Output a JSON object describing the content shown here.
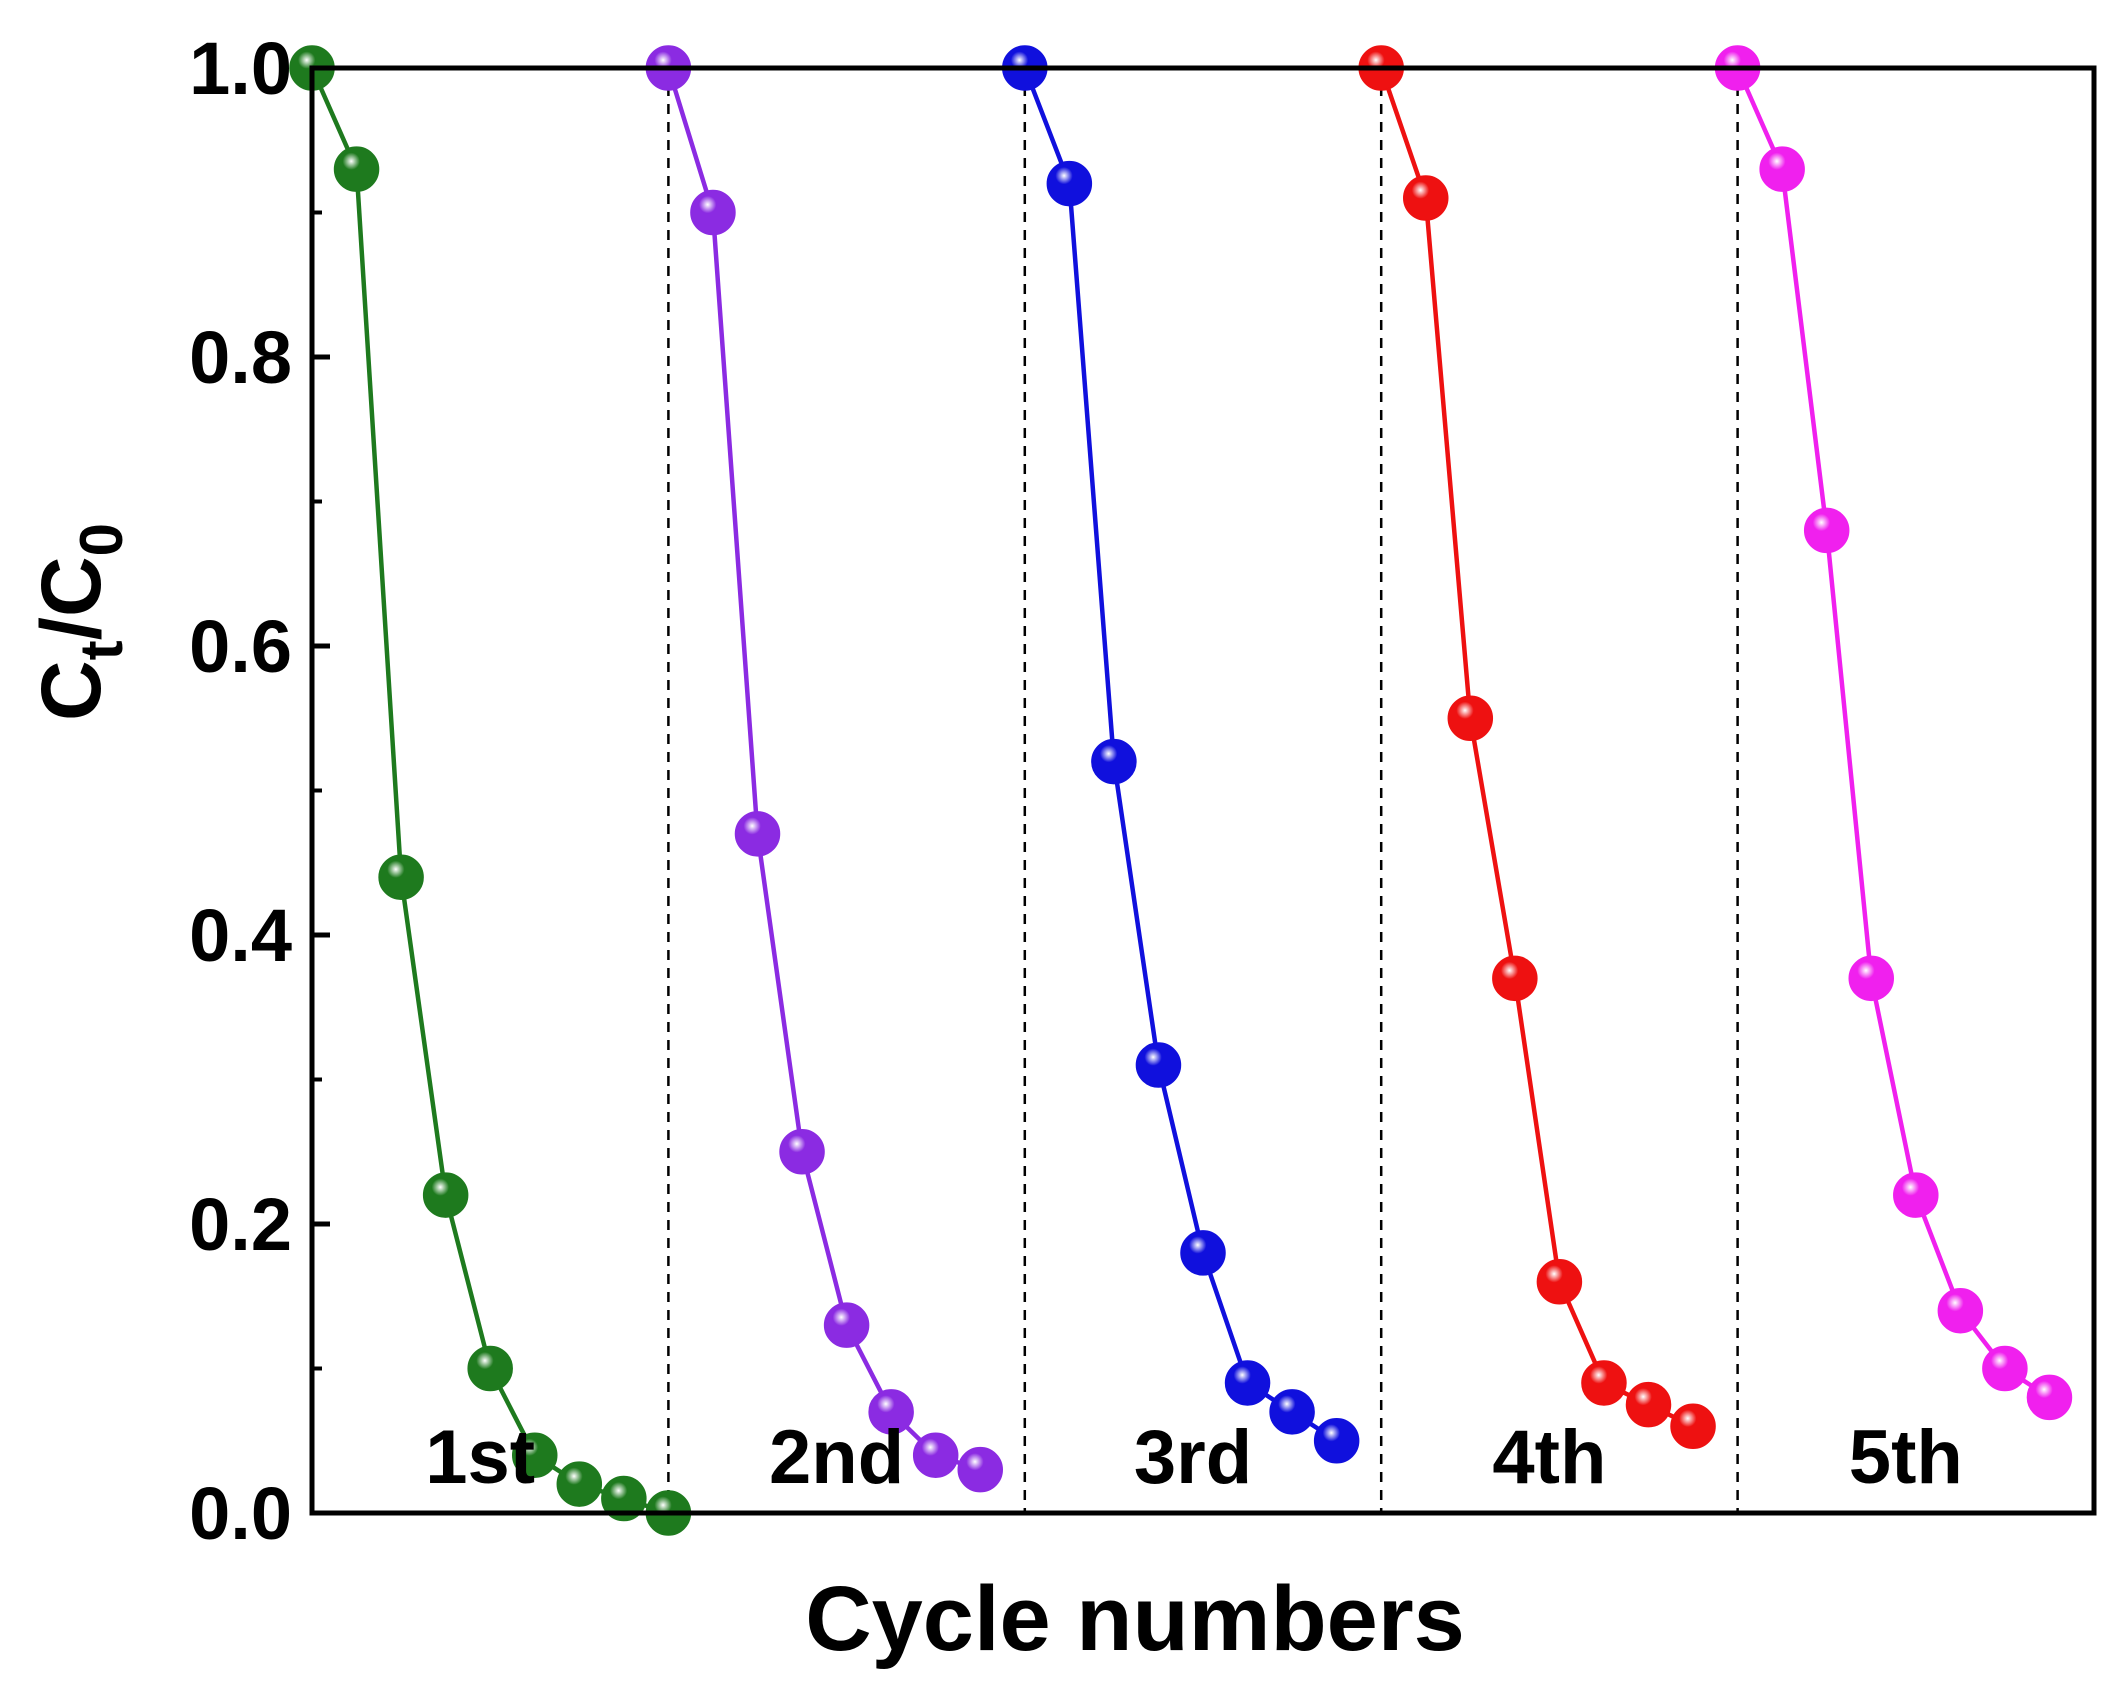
{
  "chart_data": {
    "type": "line",
    "title": "",
    "xlabel": "Cycle numbers",
    "ylabel": {
      "base": "C",
      "sub1": "t",
      "sep": "/C",
      "sub2": "0"
    },
    "ylim": [
      0,
      1.0
    ],
    "yticks": [
      "0.0",
      "0.2",
      "0.4",
      "0.6",
      "0.8",
      "1.0"
    ],
    "cycle_boundaries": [
      1,
      2,
      3,
      4
    ],
    "series": [
      {
        "name": "1st",
        "label": "1st",
        "color": "#1e7a1e",
        "x": [
          0.0,
          0.125,
          0.25,
          0.375,
          0.5,
          0.625,
          0.75,
          0.875,
          1.0
        ],
        "values": [
          1.0,
          0.93,
          0.44,
          0.22,
          0.1,
          0.04,
          0.02,
          0.01,
          0.0
        ]
      },
      {
        "name": "2nd",
        "label": "2nd",
        "color": "#8b2be2",
        "x": [
          1.0,
          1.125,
          1.25,
          1.375,
          1.5,
          1.625,
          1.75,
          1.875
        ],
        "values": [
          1.0,
          0.9,
          0.47,
          0.25,
          0.13,
          0.07,
          0.04,
          0.03
        ]
      },
      {
        "name": "3rd",
        "label": "3rd",
        "color": "#1010dd",
        "x": [
          2.0,
          2.125,
          2.25,
          2.375,
          2.5,
          2.625,
          2.75,
          2.875
        ],
        "values": [
          1.0,
          0.92,
          0.52,
          0.31,
          0.18,
          0.09,
          0.07,
          0.05
        ]
      },
      {
        "name": "4th",
        "label": "4th",
        "color": "#ee1111",
        "x": [
          3.0,
          3.125,
          3.25,
          3.375,
          3.5,
          3.625,
          3.75,
          3.875
        ],
        "values": [
          1.0,
          0.91,
          0.55,
          0.37,
          0.16,
          0.09,
          0.075,
          0.06
        ]
      },
      {
        "name": "5th",
        "label": "5th",
        "color": "#f020ee",
        "x": [
          4.0,
          4.125,
          4.25,
          4.375,
          4.5,
          4.625,
          4.75,
          4.875
        ],
        "values": [
          1.0,
          0.93,
          0.68,
          0.37,
          0.22,
          0.14,
          0.1,
          0.08
        ]
      }
    ]
  }
}
